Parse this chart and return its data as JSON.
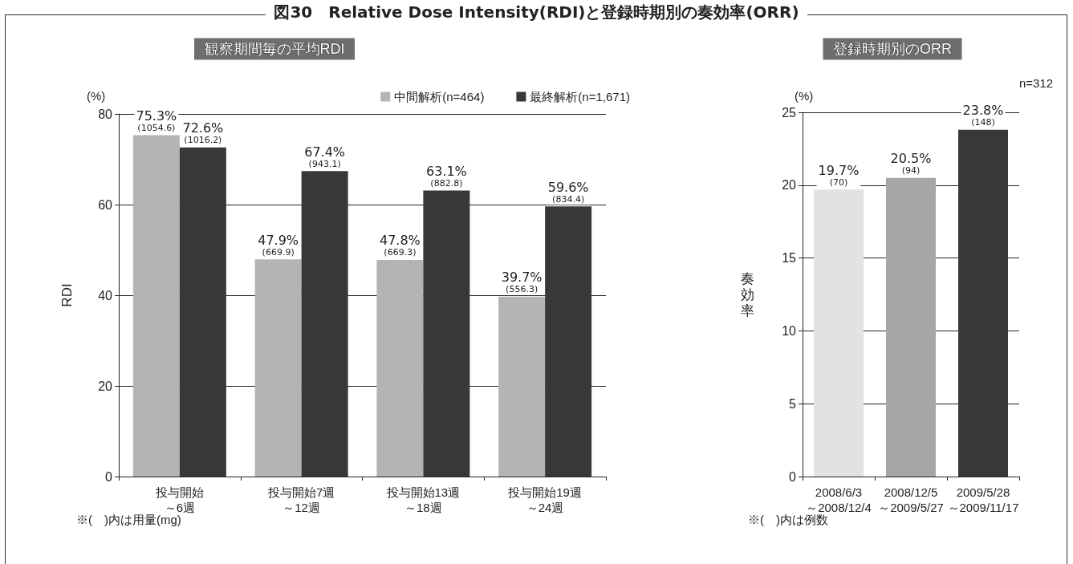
{
  "chart_data": [
    {
      "type": "bar",
      "title": "図30　Relative Dose Intensity(RDI)と登録時期別の奏効率(ORR)",
      "subtitle": "観察期間毎の平均RDI",
      "ylabel": "RDI",
      "categories": [
        "投与開始～6週",
        "投与開始7週～12週",
        "投与開始13週～18週",
        "投与開始19週～24週"
      ],
      "series": [
        {
          "name": "中間解析(n=464)",
          "color": "#b4b4b4",
          "values": [
            75.3,
            47.9,
            47.8,
            39.7
          ],
          "value_labels": [
            "75.3%\n(1054.6)",
            "47.9%\n(669.9)",
            "47.8%\n(669.3)",
            "39.7%\n(556.3)"
          ]
        },
        {
          "name": "最終解析(n=1,671)",
          "color": "#383838",
          "values": [
            72.6,
            67.4,
            63.1,
            59.6
          ],
          "value_labels": [
            "72.6%\n(1016.2)",
            "67.4%\n(943.1)",
            "63.1%\n(882.8)",
            "59.6%\n(834.4)"
          ]
        }
      ],
      "ylim": [
        0,
        80
      ],
      "yticks": [
        0,
        20,
        40,
        60,
        80
      ],
      "grid": "y",
      "legend": "top right",
      "annotations": [
        "(%)",
        "※(　)内は用量(mg)"
      ]
    },
    {
      "type": "bar",
      "title": "登録時期別のORR",
      "ylabel": "奏効率",
      "categories": [
        "2008/6/3\n～2008/12/4",
        "2008/12/5\n～2009/5/27",
        "2009/5/28\n～2009/11/17"
      ],
      "values": [
        19.7,
        20.5,
        23.8
      ],
      "colors": [
        "#e2e2e2",
        "#a6a6a6",
        "#383838"
      ],
      "value_labels": [
        "19.7%\n(70)",
        "20.5%\n(94)",
        "23.8%\n(148)"
      ],
      "ylim": [
        0,
        25
      ],
      "yticks": [
        0,
        5,
        10,
        15,
        20,
        25
      ],
      "grid": "y",
      "annotations": [
        "(%)",
        "n=312",
        "※(　)内は例数"
      ]
    }
  ]
}
